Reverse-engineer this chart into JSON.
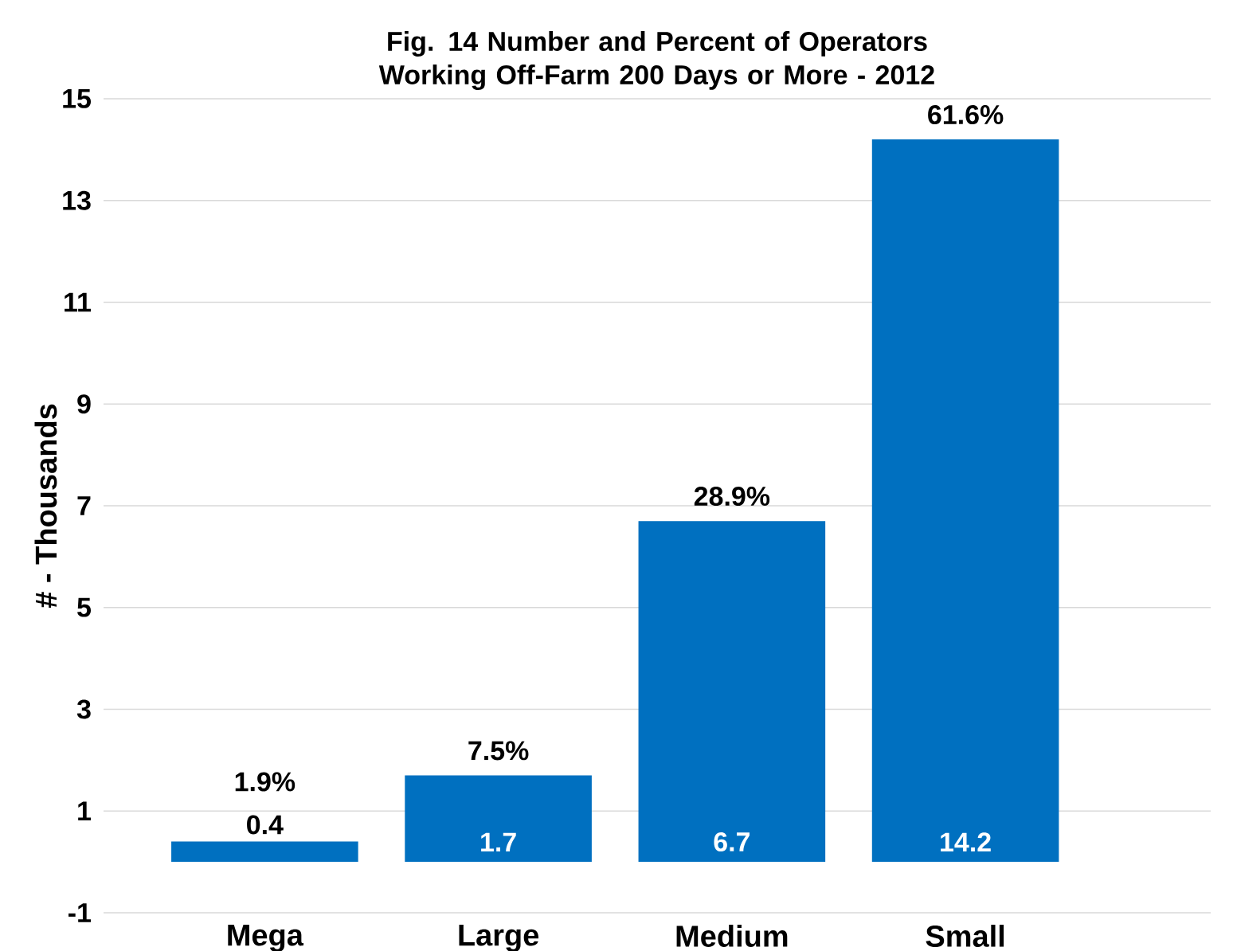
{
  "chart_data": {
    "type": "bar",
    "title": "Fig. 14 Number and Percent of Operators Working Off-Farm 200 Days or More - 2012",
    "ylabel": "# - Thousands",
    "categories": [
      "Mega",
      "Large",
      "Medium",
      "Small"
    ],
    "values": [
      0.4,
      1.7,
      6.7,
      14.2
    ],
    "color": "#0070c0",
    "data_labels": true,
    "annotations": [
      {
        "text": "1.9%",
        "x": "Mega",
        "y": 0.4
      },
      {
        "text": "7.5%",
        "x": "Large",
        "y": 1.7
      },
      {
        "text": "28.9%",
        "x": "Medium",
        "y": 6.7
      },
      {
        "text": "61.6%",
        "x": "Small",
        "y": 14.2
      }
    ],
    "ylim": [
      -1,
      15
    ],
    "yticks": [
      -1,
      1,
      3,
      5,
      7,
      9,
      11,
      13,
      15
    ],
    "grid": "y"
  }
}
